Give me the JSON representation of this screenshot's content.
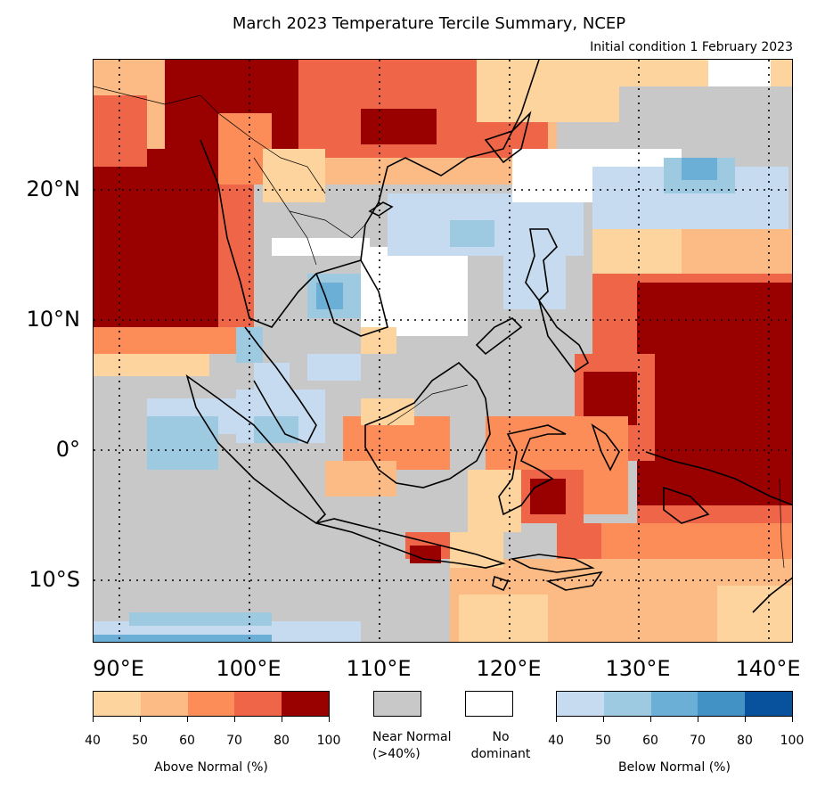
{
  "title": "March 2023 Temperature Tercile Summary, NCEP",
  "subtitle": "Initial condition 1 February 2023",
  "map": {
    "lat_labels": [
      "20°N",
      "10°N",
      "0°",
      "10°S"
    ],
    "lon_labels": [
      "90°E",
      "100°E",
      "110°E",
      "120°E",
      "130°E",
      "140°E"
    ],
    "lon_range": [
      88,
      142
    ],
    "lat_range": [
      -15,
      30
    ]
  },
  "legend": {
    "above_normal": {
      "label": "Above Normal (%)",
      "ticks": [
        "40",
        "50",
        "60",
        "70",
        "80",
        "100"
      ],
      "colors": [
        "#fdd49e",
        "#fcbb84",
        "#fc8d59",
        "#ef6548",
        "#990000"
      ]
    },
    "near_normal": {
      "label_line1": "Near Normal",
      "label_line2": "(>40%)",
      "color": "#c8c8c8"
    },
    "no_dominant": {
      "label_line1": "No",
      "label_line2": "dominant",
      "color": "#ffffff"
    },
    "below_normal": {
      "label": "Below Normal (%)",
      "ticks": [
        "40",
        "50",
        "60",
        "70",
        "80",
        "100"
      ],
      "colors": [
        "#c6dbef",
        "#9ecae1",
        "#6baed6",
        "#4292c6",
        "#08519c"
      ]
    }
  }
}
